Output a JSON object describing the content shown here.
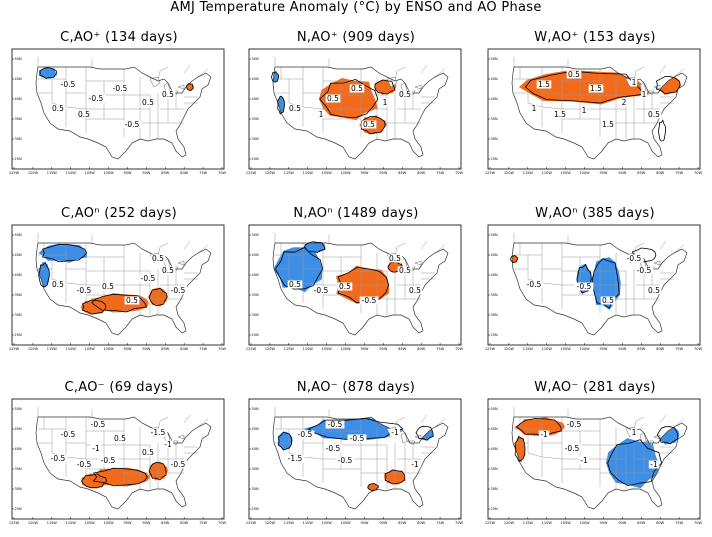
{
  "title": "AMJ Temperature Anomaly (°C) by ENSO and AO Phase",
  "legend_colors": {
    "warm": "#f26b1d",
    "cold": "#3d8ee6"
  },
  "axes": {
    "x_ticks": [
      "125W",
      "120W",
      "115W",
      "110W",
      "105W",
      "100W",
      "95W",
      "90W",
      "85W",
      "80W",
      "75W",
      "70W"
    ],
    "y_ticks": [
      "50N",
      "45N",
      "40N",
      "35N",
      "30N",
      "25N"
    ]
  },
  "panels": [
    {
      "id": "c-aop",
      "title": "C,AO⁺ (134 days)",
      "fills": [
        {
          "sign": "cold",
          "region": "nw-small"
        },
        {
          "sign": "warm",
          "region": "ne-dot"
        }
      ],
      "contour_labels": [
        "-0.5",
        "-0.5",
        "-0.5",
        "0.5",
        "0.5",
        "-0.5",
        "0.5",
        "0.5"
      ]
    },
    {
      "id": "n-aop",
      "title": "N,AO⁺ (909 days)",
      "fills": [
        {
          "sign": "warm",
          "region": "central"
        },
        {
          "sign": "cold",
          "region": "west-coast"
        }
      ],
      "contour_labels": [
        "0.5",
        "0.5",
        "1",
        "1",
        "0.5",
        "0.5",
        "0.5"
      ]
    },
    {
      "id": "w-aop",
      "title": "W,AO⁺ (153 days)",
      "fills": [
        {
          "sign": "warm",
          "region": "north-wide"
        }
      ],
      "contour_labels": [
        "1.5",
        "2",
        "1.5",
        "1.5",
        "1",
        "1",
        "1",
        "1",
        "0.5",
        "0.5",
        "1.5"
      ]
    },
    {
      "id": "c-aon",
      "title": "C,AOⁿ (252 days)",
      "fills": [
        {
          "sign": "cold",
          "region": "northwest"
        },
        {
          "sign": "warm",
          "region": "south"
        }
      ],
      "contour_labels": [
        "-0.5",
        "-0.5",
        "0.5",
        "0.5",
        "0.5",
        "0.5",
        "0.5",
        "-0.5"
      ]
    },
    {
      "id": "n-aon",
      "title": "N,AOⁿ (1489 days)",
      "fills": [
        {
          "sign": "cold",
          "region": "west"
        },
        {
          "sign": "warm",
          "region": "central-east"
        }
      ],
      "contour_labels": [
        "-0.5",
        "-0.5",
        "0.5",
        "0.5",
        "0.5",
        "0.5",
        "0.5"
      ]
    },
    {
      "id": "w-aon",
      "title": "W,AOⁿ (385 days)",
      "fills": [
        {
          "sign": "cold",
          "region": "central-band"
        },
        {
          "sign": "warm",
          "region": "nw-dot"
        }
      ],
      "contour_labels": [
        "0.5",
        "-0.5",
        "-0.5",
        "-0.5",
        "-0.5",
        "0.5"
      ]
    },
    {
      "id": "c-aom",
      "title": "C,AO⁻ (69 days)",
      "fills": [
        {
          "sign": "warm",
          "region": "south"
        }
      ],
      "contour_labels": [
        "-1",
        "-0.5",
        "-0.5",
        "-1.5",
        "-0.5",
        "-0.5",
        "-0.5",
        "-1",
        "0.5",
        "0.5",
        "-0.5"
      ]
    },
    {
      "id": "n-aom",
      "title": "N,AO⁻ (878 days)",
      "fills": [
        {
          "sign": "cold",
          "region": "north-central"
        },
        {
          "sign": "warm",
          "region": "southeast"
        }
      ],
      "contour_labels": [
        "-1.5",
        "-0.5",
        "-1",
        "-1",
        "-0.5",
        "-0.5",
        "-0.5",
        "-0.5"
      ]
    },
    {
      "id": "w-aom",
      "title": "W,AO⁻ (281 days)",
      "fills": [
        {
          "sign": "warm",
          "region": "northwest"
        },
        {
          "sign": "cold",
          "region": "east"
        }
      ],
      "contour_labels": [
        "-1",
        "1",
        "-1",
        "-0.5",
        "-1",
        "-0.5"
      ]
    }
  ]
}
